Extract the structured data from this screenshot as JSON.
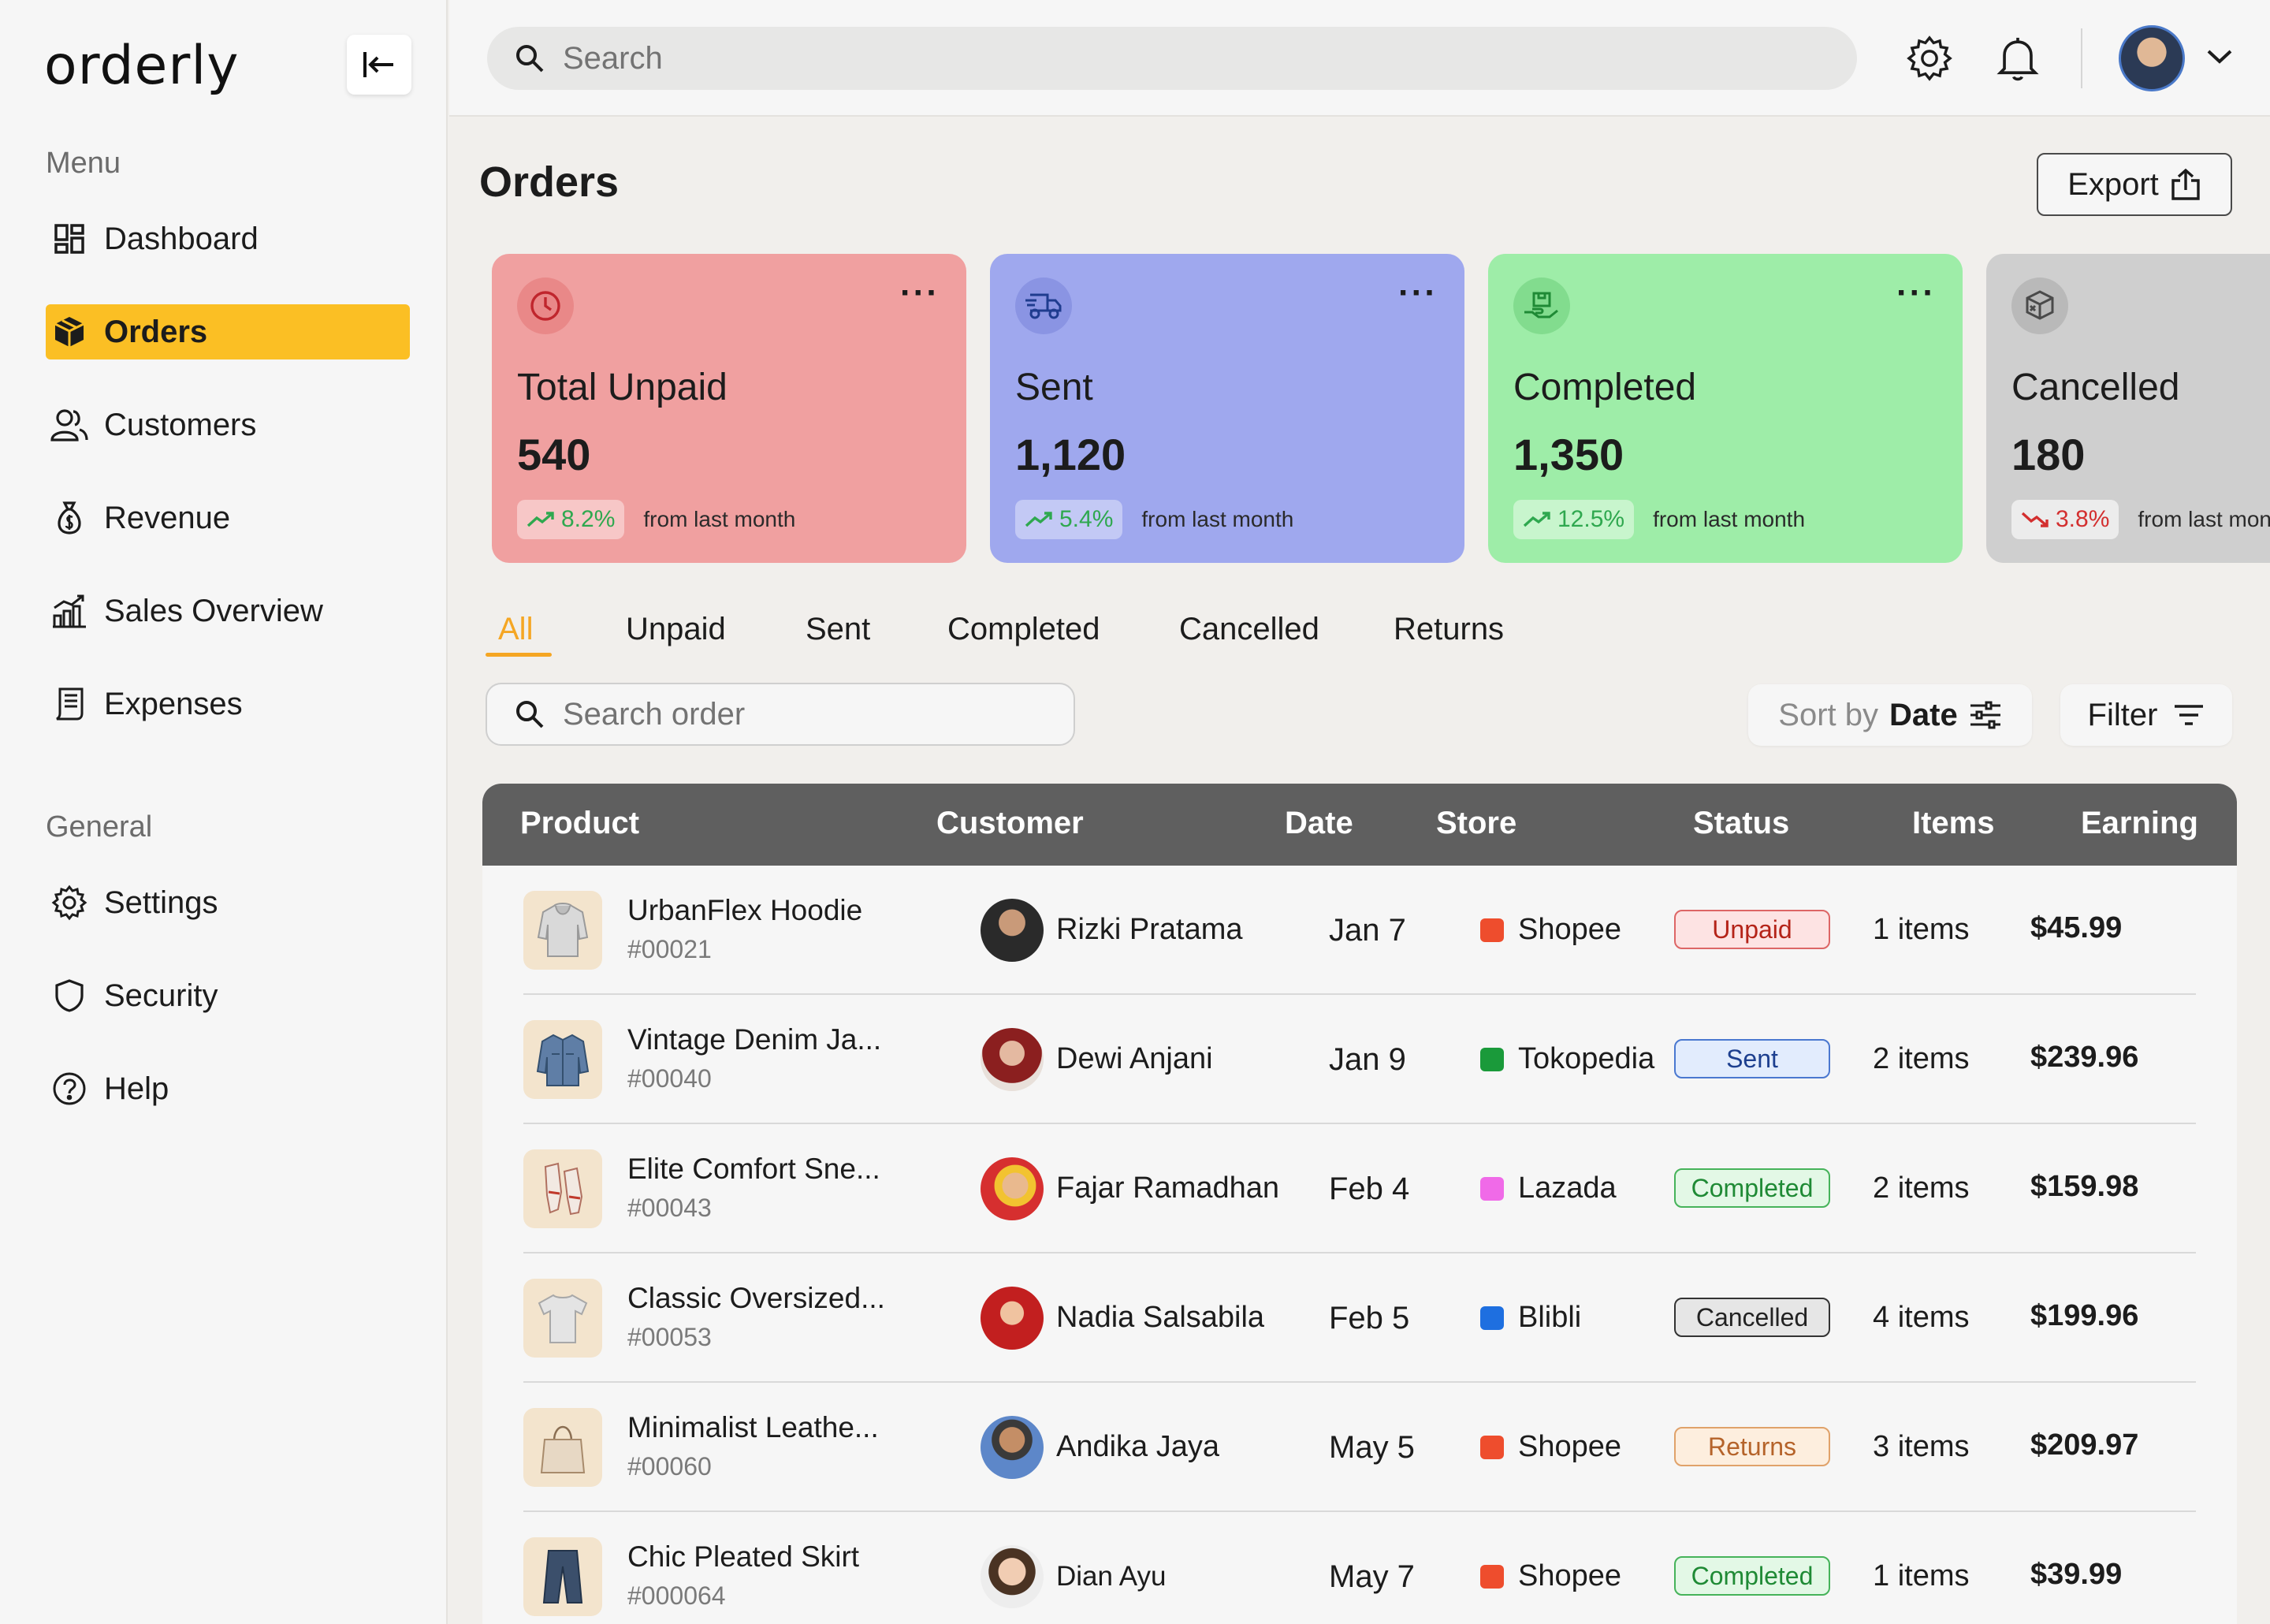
{
  "brand": {
    "logo": "orderly"
  },
  "sidebar": {
    "menu_title": "Menu",
    "general_title": "General",
    "menu_items": [
      {
        "label": "Dashboard",
        "icon": "dashboard-icon"
      },
      {
        "label": "Orders",
        "icon": "box-icon",
        "active": true
      },
      {
        "label": "Customers",
        "icon": "users-icon"
      },
      {
        "label": "Revenue",
        "icon": "money-bag-icon"
      },
      {
        "label": "Sales Overview",
        "icon": "bar-chart-icon"
      },
      {
        "label": "Expenses",
        "icon": "receipt-icon"
      }
    ],
    "general_items": [
      {
        "label": "Settings",
        "icon": "gear-icon"
      },
      {
        "label": "Security",
        "icon": "shield-icon"
      },
      {
        "label": "Help",
        "icon": "help-icon"
      }
    ]
  },
  "topbar": {
    "search_placeholder": "Search"
  },
  "main": {
    "title": "Orders",
    "export_label": "Export",
    "cards": [
      {
        "label": "Total Unpaid",
        "value": "540",
        "change": "8.2%",
        "direction": "up",
        "note": "from last month",
        "color": "#f0a0a0",
        "icon": "clock-icon"
      },
      {
        "label": "Sent",
        "value": "1,120",
        "change": "5.4%",
        "direction": "up",
        "note": "from last month",
        "color": "#9fa8ee",
        "icon": "truck-icon"
      },
      {
        "label": "Completed",
        "value": "1,350",
        "change": "12.5%",
        "direction": "up",
        "note": "from last month",
        "color": "#9eeda8",
        "icon": "delivery-icon"
      },
      {
        "label": "Cancelled",
        "value": "180",
        "change": "3.8%",
        "direction": "down",
        "note": "from last month",
        "color": "#cfcfcf",
        "icon": "cancel-box-icon"
      }
    ],
    "tabs": [
      "All",
      "Unpaid",
      "Sent",
      "Completed",
      "Cancelled",
      "Returns"
    ],
    "active_tab": "All",
    "order_search_placeholder": "Search order",
    "sort": {
      "label": "Sort by",
      "value": "Date"
    },
    "filter_label": "Filter",
    "table": {
      "headers": [
        "Product",
        "Customer",
        "Date",
        "Store",
        "Status",
        "Items",
        "Earning"
      ],
      "rows": [
        {
          "product": "UrbanFlex Hoodie",
          "id": "#00021",
          "customer": "Rizki Pratama",
          "date": "Jan 7",
          "store": "Shopee",
          "status": "Unpaid",
          "items": "1 items",
          "earning": "$45.99"
        },
        {
          "product": "Vintage Denim Ja...",
          "id": "#00040",
          "customer": "Dewi Anjani",
          "date": "Jan 9",
          "store": "Tokopedia",
          "status": "Sent",
          "items": "2 items",
          "earning": "$239.96"
        },
        {
          "product": "Elite Comfort Sne...",
          "id": "#00043",
          "customer": "Fajar Ramadhan",
          "date": "Feb 4",
          "store": "Lazada",
          "status": "Completed",
          "items": "2 items",
          "earning": "$159.98"
        },
        {
          "product": "Classic Oversized...",
          "id": "#00053",
          "customer": "Nadia Salsabila",
          "date": "Feb 5",
          "store": "Blibli",
          "status": "Cancelled",
          "items": "4 items",
          "earning": "$199.96"
        },
        {
          "product": "Minimalist Leathe...",
          "id": "#00060",
          "customer": "Andika Jaya",
          "date": "May 5",
          "store": "Shopee",
          "status": "Returns",
          "items": "3 items",
          "earning": "$209.97"
        },
        {
          "product": "Chic Pleated Skirt",
          "id": "#000064",
          "customer": "Dian Ayu",
          "date": "May 7",
          "store": "Shopee",
          "status": "Completed",
          "items": "1 items",
          "earning": "$39.99"
        }
      ]
    },
    "store_colors": {
      "Shopee": "#ee4d2d",
      "Tokopedia": "#1a9a3a",
      "Lazada": "#f06ae8",
      "Blibli": "#1e6fe0"
    },
    "status_colors": {
      "Unpaid": {
        "bg": "#fde3e3",
        "border": "#d66",
        "text": "#b42318"
      },
      "Sent": {
        "bg": "#e2ecfd",
        "border": "#4a78d0",
        "text": "#1d3f8f"
      },
      "Completed": {
        "bg": "#e3f8e6",
        "border": "#46b35a",
        "text": "#1f8a35"
      },
      "Cancelled": {
        "bg": "#e6e6e6",
        "border": "#333",
        "text": "#222"
      },
      "Returns": {
        "bg": "#fdeede",
        "border": "#e0a26a",
        "text": "#b5632a"
      }
    }
  }
}
